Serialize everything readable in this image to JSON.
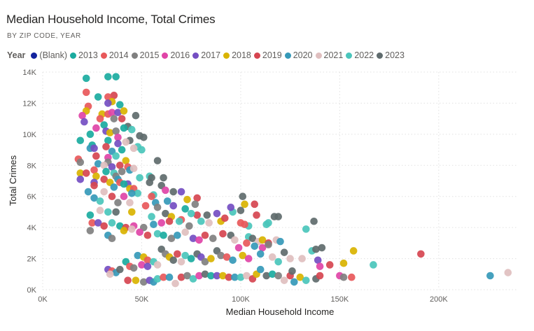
{
  "chart_data": {
    "type": "scatter",
    "title": "Median Household Income, Total Crimes",
    "subtitle": "BY ZIP CODE, YEAR",
    "xlabel": "Median Household Income",
    "ylabel": "Total Crimes",
    "xlim": [
      0,
      240000
    ],
    "ylim": [
      0,
      14000
    ],
    "x_ticks": [
      0,
      50000,
      100000,
      150000,
      200000
    ],
    "x_tick_labels": [
      "0K",
      "50K",
      "100K",
      "150K",
      "200K"
    ],
    "y_ticks": [
      0,
      2000,
      4000,
      6000,
      8000,
      10000,
      12000,
      14000
    ],
    "y_tick_labels": [
      "0K",
      "2K",
      "4K",
      "6K",
      "8K",
      "10K",
      "12K",
      "14K"
    ],
    "grid": true,
    "legend": {
      "title": "Year",
      "placement": "top-left",
      "entries": [
        {
          "name": "(Blank)",
          "color": "#12239E"
        },
        {
          "name": "2013",
          "color": "#1AAB9F"
        },
        {
          "name": "2014",
          "color": "#E8585A"
        },
        {
          "name": "2015",
          "color": "#808080"
        },
        {
          "name": "2016",
          "color": "#E044A7"
        },
        {
          "name": "2017",
          "color": "#744EC2"
        },
        {
          "name": "2018",
          "color": "#D9B300"
        },
        {
          "name": "2019",
          "color": "#D64550"
        },
        {
          "name": "2020",
          "color": "#3599B8"
        },
        {
          "name": "2021",
          "color": "#DFBFBF"
        },
        {
          "name": "2022",
          "color": "#4AC5BB"
        },
        {
          "name": "2023",
          "color": "#5F6B6D"
        }
      ]
    },
    "points_format": [
      "income_thousands",
      "crimes_thousands",
      "year"
    ],
    "points": [
      [
        22,
        13.6,
        "2013"
      ],
      [
        33,
        13.7,
        "2013"
      ],
      [
        37,
        13.7,
        "2013"
      ],
      [
        22,
        12.7,
        "2014"
      ],
      [
        36,
        12.5,
        "2019"
      ],
      [
        33,
        12.4,
        "2014"
      ],
      [
        28,
        12.4,
        "2013"
      ],
      [
        35,
        12.1,
        "2018"
      ],
      [
        33,
        12.0,
        "2017"
      ],
      [
        39,
        11.9,
        "2013"
      ],
      [
        23,
        11.8,
        "2014"
      ],
      [
        22,
        11.5,
        "2018"
      ],
      [
        20,
        11.2,
        "2016"
      ],
      [
        30,
        11.3,
        "2018"
      ],
      [
        33,
        11.3,
        "2014"
      ],
      [
        35,
        11.4,
        "2016"
      ],
      [
        38,
        11.4,
        "2017"
      ],
      [
        41,
        11.5,
        "2018"
      ],
      [
        40,
        11.0,
        "2019"
      ],
      [
        36,
        11.0,
        "2015"
      ],
      [
        47,
        11.2,
        "2023"
      ],
      [
        29,
        11.0,
        "2014"
      ],
      [
        21,
        10.8,
        "2017"
      ],
      [
        31,
        10.6,
        "2013"
      ],
      [
        43,
        10.5,
        "2023"
      ],
      [
        41,
        10.4,
        "2013"
      ],
      [
        27,
        10.4,
        "2016"
      ],
      [
        24,
        10.0,
        "2013"
      ],
      [
        32,
        10.2,
        "2017"
      ],
      [
        34,
        10.1,
        "2018"
      ],
      [
        37,
        10.2,
        "2015"
      ],
      [
        45,
        10.3,
        "2022"
      ],
      [
        49,
        9.9,
        "2023"
      ],
      [
        51,
        9.8,
        "2023"
      ],
      [
        44,
        9.6,
        "2023"
      ],
      [
        38,
        9.8,
        "2016"
      ],
      [
        33,
        9.6,
        "2013"
      ],
      [
        19,
        9.6,
        "2013"
      ],
      [
        25,
        9.3,
        "2013"
      ],
      [
        42,
        9.5,
        "2021"
      ],
      [
        38,
        9.4,
        "2017"
      ],
      [
        48,
        9.2,
        "2022"
      ],
      [
        50,
        9.0,
        "2022"
      ],
      [
        24,
        9.1,
        "2020"
      ],
      [
        26,
        9.1,
        "2017"
      ],
      [
        32,
        9.2,
        "2019"
      ],
      [
        40,
        9.0,
        "2013"
      ],
      [
        46,
        9.1,
        "2021"
      ],
      [
        35,
        8.9,
        "2020"
      ],
      [
        27,
        8.6,
        "2019"
      ],
      [
        37,
        8.6,
        "2022"
      ],
      [
        33,
        8.5,
        "2016"
      ],
      [
        42,
        8.3,
        "2018"
      ],
      [
        18,
        8.4,
        "2014"
      ],
      [
        58,
        8.3,
        "2023"
      ],
      [
        19,
        8.2,
        "2015"
      ],
      [
        33,
        8.2,
        "2015"
      ],
      [
        39,
        8.0,
        "2019"
      ],
      [
        28,
        8.1,
        "2020"
      ],
      [
        31,
        8.0,
        "2021"
      ],
      [
        35,
        7.9,
        "2017"
      ],
      [
        43,
        7.9,
        "2014"
      ],
      [
        26,
        7.7,
        "2014"
      ],
      [
        44,
        7.7,
        "2020"
      ],
      [
        46,
        7.8,
        "2021"
      ],
      [
        40,
        7.6,
        "2015"
      ],
      [
        36,
        7.5,
        "2022"
      ],
      [
        32,
        7.6,
        "2013"
      ],
      [
        19,
        7.5,
        "2018"
      ],
      [
        22,
        7.5,
        "2019"
      ],
      [
        27,
        7.3,
        "2018"
      ],
      [
        37,
        7.3,
        "2015"
      ],
      [
        54,
        7.3,
        "2022"
      ],
      [
        55,
        7.2,
        "2023"
      ],
      [
        61,
        7.2,
        "2023"
      ],
      [
        49,
        7.2,
        "2022"
      ],
      [
        19,
        7.1,
        "2017"
      ],
      [
        31,
        7.1,
        "2019"
      ],
      [
        38,
        7.1,
        "2020"
      ],
      [
        34,
        6.9,
        "2018"
      ],
      [
        39,
        6.9,
        "2014"
      ],
      [
        43,
        6.8,
        "2017"
      ],
      [
        54,
        6.9,
        "2023"
      ],
      [
        26,
        6.9,
        "2017"
      ],
      [
        36,
        6.6,
        "2020"
      ],
      [
        41,
        6.8,
        "2013"
      ],
      [
        60,
        6.7,
        "2023"
      ],
      [
        26,
        6.7,
        "2019"
      ],
      [
        44,
        6.5,
        "2018"
      ],
      [
        46,
        6.5,
        "2014"
      ],
      [
        48,
        6.2,
        "2022"
      ],
      [
        62,
        6.4,
        "2016"
      ],
      [
        45,
        6.2,
        "2020"
      ],
      [
        23,
        6.3,
        "2020"
      ],
      [
        31,
        6.3,
        "2021"
      ],
      [
        35,
        6.0,
        "2019"
      ],
      [
        56,
        6.1,
        "2022"
      ],
      [
        66,
        6.3,
        "2023"
      ],
      [
        70,
        6.3,
        "2017"
      ],
      [
        41,
        6.0,
        "2016"
      ],
      [
        55,
        6.0,
        "2014"
      ],
      [
        26,
        5.9,
        "2020"
      ],
      [
        29,
        5.7,
        "2022"
      ],
      [
        44,
        5.6,
        "2021"
      ],
      [
        38,
        5.6,
        "2015"
      ],
      [
        52,
        5.4,
        "2014"
      ],
      [
        57,
        5.6,
        "2020"
      ],
      [
        63,
        5.7,
        "2020"
      ],
      [
        73,
        5.8,
        "2018"
      ],
      [
        78,
        5.9,
        "2019"
      ],
      [
        77,
        5.5,
        "2015"
      ],
      [
        58,
        5.3,
        "2015"
      ],
      [
        72,
        5.2,
        "2013"
      ],
      [
        66,
        5.4,
        "2017"
      ],
      [
        29,
        5.1,
        "2021"
      ],
      [
        33,
        5.0,
        "2022"
      ],
      [
        37,
        5.0,
        "2023"
      ],
      [
        45,
        5.0,
        "2018"
      ],
      [
        62,
        4.9,
        "2023"
      ],
      [
        78,
        4.8,
        "2019"
      ],
      [
        83,
        4.8,
        "2023"
      ],
      [
        88,
        4.9,
        "2017"
      ],
      [
        75,
        4.9,
        "2022"
      ],
      [
        70,
        4.5,
        "2014"
      ],
      [
        65,
        4.7,
        "2018"
      ],
      [
        55,
        4.7,
        "2022"
      ],
      [
        24,
        4.8,
        "2013"
      ],
      [
        25,
        4.3,
        "2014"
      ],
      [
        28,
        4.3,
        "2017"
      ],
      [
        31,
        4.1,
        "2019"
      ],
      [
        35,
        4.3,
        "2022"
      ],
      [
        39,
        4.1,
        "2013"
      ],
      [
        42,
        4.0,
        "2019"
      ],
      [
        46,
        4.1,
        "2016"
      ],
      [
        51,
        4.0,
        "2015"
      ],
      [
        56,
        4.2,
        "2020"
      ],
      [
        60,
        4.3,
        "2016"
      ],
      [
        64,
        4.4,
        "2019"
      ],
      [
        69,
        4.4,
        "2022"
      ],
      [
        74,
        4.1,
        "2015"
      ],
      [
        80,
        4.4,
        "2022"
      ],
      [
        84,
        4.3,
        "2021"
      ],
      [
        90,
        4.4,
        "2018"
      ],
      [
        92,
        4.6,
        "2019"
      ],
      [
        96,
        5.0,
        "2022"
      ],
      [
        100,
        5.1,
        "2023"
      ],
      [
        101,
        6.0,
        "2023"
      ],
      [
        102,
        5.5,
        "2018"
      ],
      [
        107,
        5.5,
        "2019"
      ],
      [
        95,
        5.3,
        "2017"
      ],
      [
        108,
        4.8,
        "2019"
      ],
      [
        117,
        4.7,
        "2023"
      ],
      [
        119,
        4.7,
        "2023"
      ],
      [
        114,
        4.3,
        "2022"
      ],
      [
        113,
        4.2,
        "2022"
      ],
      [
        137,
        4.4,
        "2023"
      ],
      [
        133,
        3.9,
        "2022"
      ],
      [
        104,
        4.1,
        "2022"
      ],
      [
        100,
        4.3,
        "2014"
      ],
      [
        102,
        4.2,
        "2014"
      ],
      [
        24,
        3.8,
        "2015"
      ],
      [
        33,
        3.5,
        "2020"
      ],
      [
        35,
        3.3,
        "2015"
      ],
      [
        41,
        3.8,
        "2018"
      ],
      [
        45,
        3.9,
        "2021"
      ],
      [
        49,
        3.7,
        "2016"
      ],
      [
        53,
        3.5,
        "2019"
      ],
      [
        58,
        3.6,
        "2022"
      ],
      [
        61,
        3.5,
        "2013"
      ],
      [
        65,
        3.3,
        "2015"
      ],
      [
        68,
        3.5,
        "2020"
      ],
      [
        72,
        3.7,
        "2021"
      ],
      [
        76,
        3.3,
        "2017"
      ],
      [
        79,
        3.2,
        "2016"
      ],
      [
        82,
        3.5,
        "2019"
      ],
      [
        86,
        3.3,
        "2015"
      ],
      [
        91,
        3.6,
        "2019"
      ],
      [
        95,
        3.5,
        "2023"
      ],
      [
        97,
        3.2,
        "2021"
      ],
      [
        104,
        3.4,
        "2022"
      ],
      [
        106,
        3.3,
        "2023"
      ],
      [
        109,
        3.1,
        "2021"
      ],
      [
        111,
        3.2,
        "2018"
      ],
      [
        114,
        3.0,
        "2019"
      ],
      [
        118,
        3.2,
        "2021"
      ],
      [
        103,
        3.0,
        "2014"
      ],
      [
        107,
        2.8,
        "2020"
      ],
      [
        111,
        2.7,
        "2016"
      ],
      [
        114,
        2.9,
        "2015"
      ],
      [
        120,
        3.1,
        "2020"
      ],
      [
        136,
        2.5,
        "2022"
      ],
      [
        141,
        2.7,
        "2023"
      ],
      [
        138,
        2.6,
        "2023"
      ],
      [
        157,
        2.5,
        "2018"
      ],
      [
        191,
        2.3,
        "2019"
      ],
      [
        152,
        1.7,
        "2018"
      ],
      [
        167,
        1.6,
        "2022"
      ],
      [
        145,
        1.6,
        "2019"
      ],
      [
        139,
        1.9,
        "2017"
      ],
      [
        140,
        1.5,
        "2016"
      ],
      [
        48,
        2.2,
        "2020"
      ],
      [
        51,
        2.1,
        "2018"
      ],
      [
        53,
        1.9,
        "2014"
      ],
      [
        56,
        1.8,
        "2022"
      ],
      [
        58,
        1.6,
        "2021"
      ],
      [
        60,
        2.6,
        "2023"
      ],
      [
        62,
        2.3,
        "2015"
      ],
      [
        64,
        2.1,
        "2018"
      ],
      [
        66,
        1.9,
        "2023"
      ],
      [
        68,
        2.3,
        "2019"
      ],
      [
        70,
        1.8,
        "2021"
      ],
      [
        72,
        2.2,
        "2022"
      ],
      [
        75,
        2.0,
        "2013"
      ],
      [
        78,
        2.3,
        "2023"
      ],
      [
        80,
        2.1,
        "2017"
      ],
      [
        82,
        1.8,
        "2015"
      ],
      [
        85,
        2.0,
        "2018"
      ],
      [
        88,
        2.5,
        "2023"
      ],
      [
        90,
        2.2,
        "2015"
      ],
      [
        93,
        2.1,
        "2014"
      ],
      [
        96,
        1.9,
        "2020"
      ],
      [
        99,
        2.7,
        "2016"
      ],
      [
        101,
        2.2,
        "2018"
      ],
      [
        104,
        2.0,
        "2016"
      ],
      [
        110,
        2.3,
        "2020"
      ],
      [
        116,
        2.1,
        "2021"
      ],
      [
        119,
        1.8,
        "2022"
      ],
      [
        122,
        2.4,
        "2023"
      ],
      [
        125,
        2.0,
        "2021"
      ],
      [
        131,
        2.0,
        "2021"
      ],
      [
        33,
        1.3,
        "2017"
      ],
      [
        35,
        1.2,
        "2014"
      ],
      [
        37,
        1.1,
        "2020"
      ],
      [
        39,
        1.3,
        "2023"
      ],
      [
        34,
        1.0,
        "2021"
      ],
      [
        42,
        1.8,
        "2013"
      ],
      [
        44,
        1.5,
        "2014"
      ],
      [
        46,
        1.4,
        "2015"
      ],
      [
        50,
        1.6,
        "2016"
      ],
      [
        53,
        1.5,
        "2017"
      ],
      [
        43,
        0.6,
        "2019"
      ],
      [
        47,
        0.6,
        "2018"
      ],
      [
        51,
        0.5,
        "2015"
      ],
      [
        54,
        0.6,
        "2017"
      ],
      [
        56,
        0.5,
        "2020"
      ],
      [
        58,
        0.7,
        "2022"
      ],
      [
        61,
        0.8,
        "2014"
      ],
      [
        64,
        0.8,
        "2020"
      ],
      [
        67,
        0.4,
        "2021"
      ],
      [
        70,
        0.8,
        "2019"
      ],
      [
        73,
        0.9,
        "2015"
      ],
      [
        76,
        0.7,
        "2022"
      ],
      [
        79,
        0.9,
        "2016"
      ],
      [
        82,
        1.0,
        "2023"
      ],
      [
        85,
        0.9,
        "2013"
      ],
      [
        88,
        0.9,
        "2017"
      ],
      [
        91,
        0.9,
        "2018"
      ],
      [
        94,
        0.8,
        "2019"
      ],
      [
        97,
        0.8,
        "2020"
      ],
      [
        100,
        0.8,
        "2022"
      ],
      [
        103,
        0.9,
        "2021"
      ],
      [
        106,
        0.7,
        "2019"
      ],
      [
        108,
        1.0,
        "2018"
      ],
      [
        110,
        1.3,
        "2020"
      ],
      [
        113,
        0.9,
        "2023"
      ],
      [
        116,
        1.0,
        "2013"
      ],
      [
        119,
        0.9,
        "2015"
      ],
      [
        122,
        0.6,
        "2021"
      ],
      [
        125,
        0.9,
        "2019"
      ],
      [
        127,
        0.5,
        "2020"
      ],
      [
        130,
        0.8,
        "2018"
      ],
      [
        133,
        0.6,
        "2022"
      ],
      [
        138,
        0.7,
        "2023"
      ],
      [
        140,
        0.9,
        "2019"
      ],
      [
        150,
        0.9,
        "2016"
      ],
      [
        152,
        0.8,
        "2015"
      ],
      [
        156,
        0.8,
        "2014"
      ],
      [
        226,
        0.9,
        "2020"
      ],
      [
        235,
        1.1,
        "2021"
      ],
      [
        126,
        1.2,
        "2023"
      ]
    ]
  }
}
